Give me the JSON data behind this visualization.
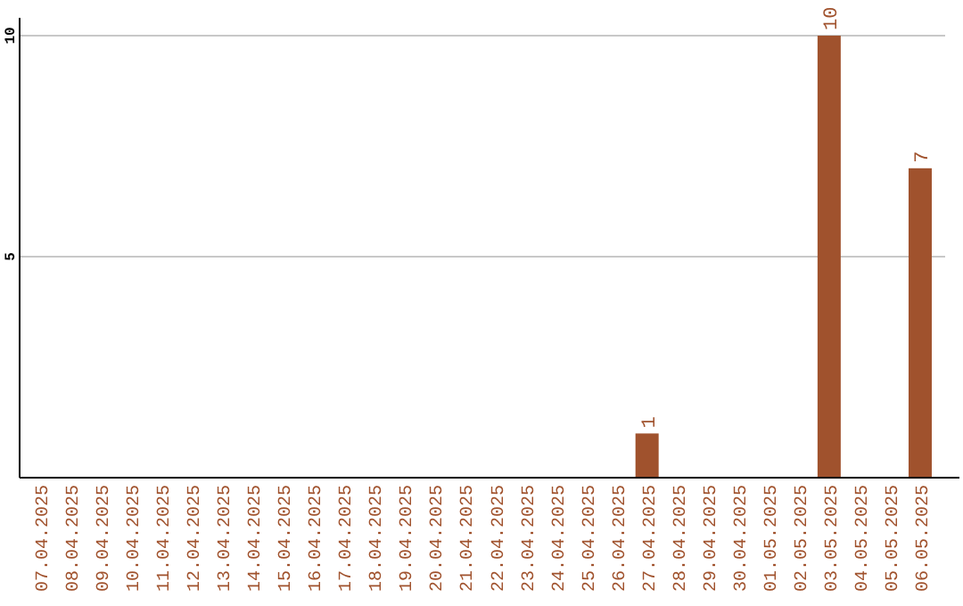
{
  "chart_data": {
    "type": "bar",
    "categories": [
      "07.04.2025",
      "08.04.2025",
      "09.04.2025",
      "10.04.2025",
      "11.04.2025",
      "12.04.2025",
      "13.04.2025",
      "14.04.2025",
      "15.04.2025",
      "16.04.2025",
      "17.04.2025",
      "18.04.2025",
      "19.04.2025",
      "20.04.2025",
      "21.04.2025",
      "22.04.2025",
      "23.04.2025",
      "24.04.2025",
      "25.04.2025",
      "26.04.2025",
      "27.04.2025",
      "28.04.2025",
      "29.04.2025",
      "30.04.2025",
      "01.05.2025",
      "02.05.2025",
      "03.05.2025",
      "04.05.2025",
      "05.05.2025",
      "06.05.2025"
    ],
    "values": [
      0,
      0,
      0,
      0,
      0,
      0,
      0,
      0,
      0,
      0,
      0,
      0,
      0,
      0,
      0,
      0,
      0,
      0,
      0,
      0,
      1,
      0,
      0,
      0,
      0,
      0,
      10,
      0,
      0,
      7
    ],
    "value_labels": [
      null,
      null,
      null,
      null,
      null,
      null,
      null,
      null,
      null,
      null,
      null,
      null,
      null,
      null,
      null,
      null,
      null,
      null,
      null,
      null,
      "1",
      null,
      null,
      null,
      null,
      null,
      "10",
      null,
      null,
      "7"
    ],
    "color": "#a0522d",
    "ylim": [
      0,
      10
    ],
    "yticks": [
      5,
      10
    ],
    "grid": "y"
  }
}
